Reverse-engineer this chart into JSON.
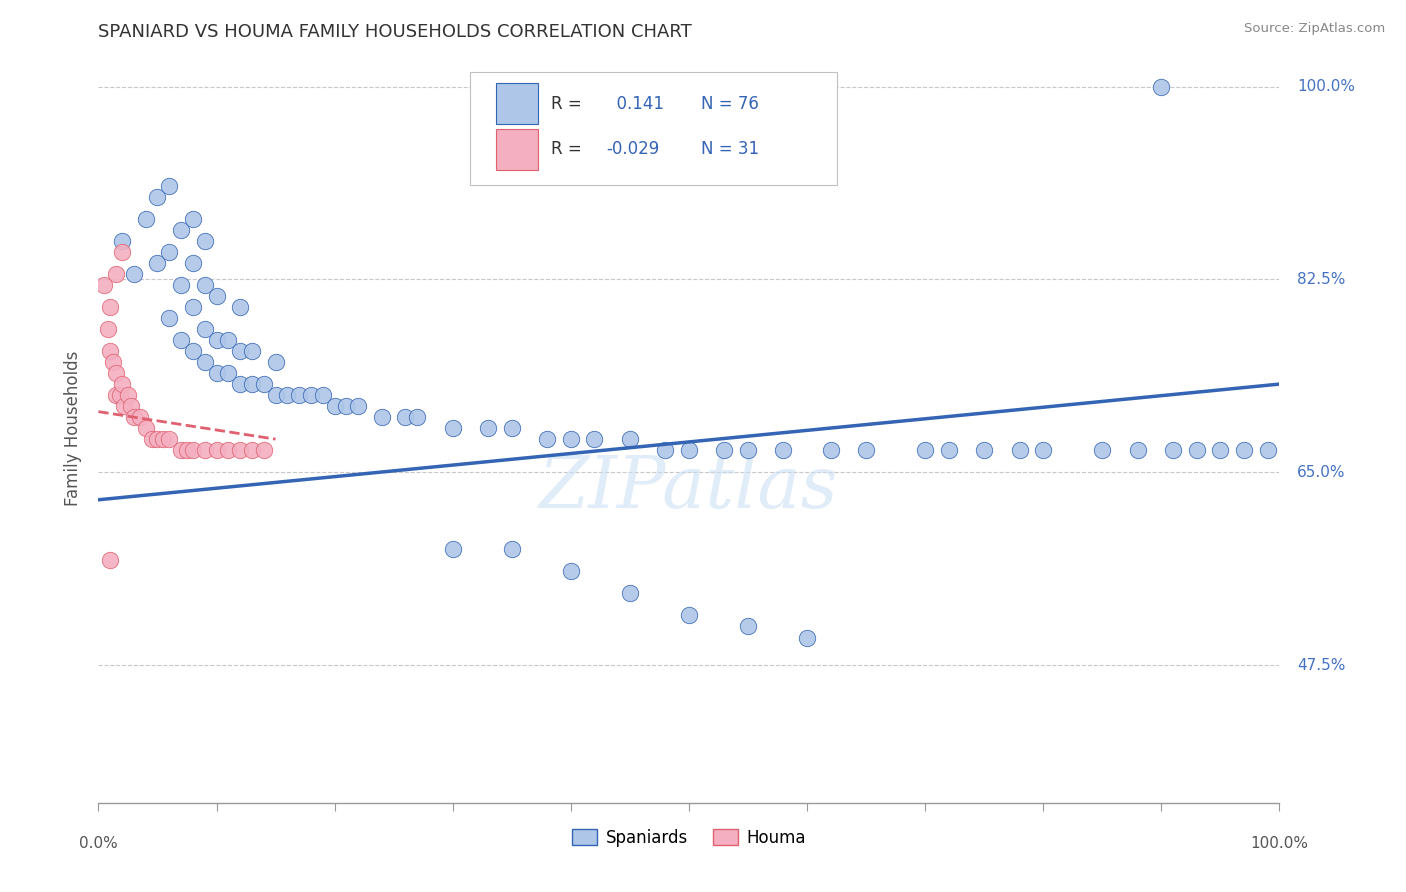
{
  "title": "SPANIARD VS HOUMA FAMILY HOUSEHOLDS CORRELATION CHART",
  "source": "Source: ZipAtlas.com",
  "ylabel": "Family Households",
  "watermark": "ZIPatlas",
  "legend_r_spaniards": "0.141",
  "legend_n_spaniards": "76",
  "legend_r_houma": "-0.029",
  "legend_n_houma": "31",
  "spaniards_fill": "#aec6e8",
  "houma_fill": "#f4afc0",
  "trend_blue": "#3464b4",
  "trend_pink": "#e06070",
  "background_color": "#ffffff",
  "grid_color": "#c8c8c8",
  "ytick_color": "#4472c4",
  "xtick_color": "#555555",
  "sp_x": [
    2,
    3,
    4,
    5,
    5,
    6,
    6,
    6,
    7,
    7,
    7,
    8,
    8,
    8,
    8,
    9,
    9,
    9,
    9,
    10,
    10,
    10,
    11,
    11,
    12,
    12,
    12,
    13,
    13,
    14,
    15,
    15,
    16,
    17,
    18,
    19,
    20,
    21,
    22,
    24,
    26,
    27,
    30,
    33,
    35,
    38,
    40,
    42,
    45,
    48,
    50,
    53,
    55,
    58,
    62,
    65,
    70,
    72,
    75,
    78,
    80,
    85,
    88,
    91,
    93,
    95,
    97,
    99,
    30,
    35,
    40,
    45,
    50,
    55,
    60,
    90
  ],
  "sp_y": [
    86,
    83,
    88,
    84,
    90,
    79,
    85,
    91,
    77,
    82,
    87,
    76,
    80,
    84,
    88,
    75,
    78,
    82,
    86,
    74,
    77,
    81,
    74,
    77,
    73,
    76,
    80,
    73,
    76,
    73,
    72,
    75,
    72,
    72,
    72,
    72,
    71,
    71,
    71,
    70,
    70,
    70,
    69,
    69,
    69,
    68,
    68,
    68,
    68,
    67,
    67,
    67,
    67,
    67,
    67,
    67,
    67,
    67,
    67,
    67,
    67,
    67,
    67,
    67,
    67,
    67,
    67,
    67,
    58,
    58,
    56,
    54,
    52,
    51,
    50,
    100
  ],
  "ho_x": [
    0.5,
    0.8,
    1.0,
    1.0,
    1.2,
    1.5,
    1.5,
    1.8,
    2.0,
    2.2,
    2.5,
    2.8,
    3.0,
    3.5,
    4.0,
    4.5,
    5.0,
    5.5,
    6.0,
    7.0,
    7.5,
    8.0,
    9.0,
    10.0,
    11.0,
    12.0,
    13.0,
    14.0,
    1.0,
    1.5,
    2.0
  ],
  "ho_y": [
    82,
    78,
    76,
    80,
    75,
    72,
    74,
    72,
    73,
    71,
    72,
    71,
    70,
    70,
    69,
    68,
    68,
    68,
    68,
    67,
    67,
    67,
    67,
    67,
    67,
    67,
    67,
    67,
    57,
    83,
    85
  ],
  "sp_trend_x": [
    0,
    100
  ],
  "sp_trend_y": [
    62.5,
    73.0
  ],
  "ho_trend_x": [
    0,
    15
  ],
  "ho_trend_y": [
    70.5,
    68.0
  ],
  "xmin": 0,
  "xmax": 100,
  "ymin": 35,
  "ymax": 103,
  "yticks": [
    47.5,
    65.0,
    82.5,
    100.0
  ],
  "ytick_labels": [
    "47.5%",
    "65.0%",
    "82.5%",
    "100.0%"
  ]
}
